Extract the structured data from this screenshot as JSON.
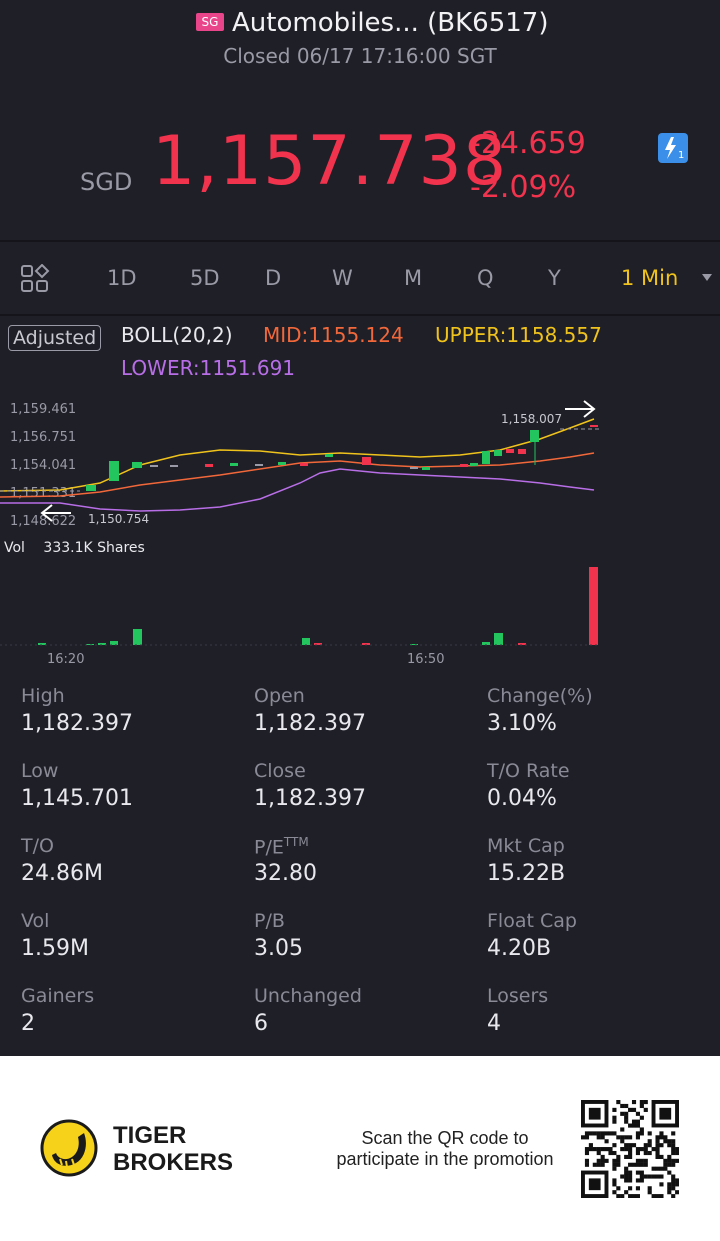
{
  "header": {
    "market_badge": "SG",
    "title": "Automobiles... (BK6517)",
    "status": "Closed 06/17 17:16:00 SGT",
    "currency": "SGD",
    "price": "1,157.738",
    "change": "-24.659",
    "change_pct": "-2.09%",
    "flash_icon": "lightning-icon",
    "colors": {
      "down": "#f2334e",
      "up": "#22c55e",
      "accent": "#f0c31c"
    }
  },
  "tabs": {
    "items": [
      "1D",
      "5D",
      "D",
      "W",
      "M",
      "Q",
      "Y",
      "1 Min"
    ],
    "active": "1 Min"
  },
  "indicator": {
    "adjusted": "Adjusted",
    "boll": "BOLL(20,2)",
    "mid": "MID:1155.124",
    "upper": "UPPER:1158.557",
    "lower": "LOWER:1151.691"
  },
  "chart_data": {
    "type": "candlestick",
    "y_ticks": [
      "1,159.461",
      "1,156.751",
      "1,154.041",
      "1,151.331",
      "1,148.622"
    ],
    "ylim": [
      1148.622,
      1159.461
    ],
    "max_label": "1,158.007",
    "min_label": "1,150.754",
    "x_ticks": [
      "16:20",
      "16:50"
    ],
    "vol_label": "Vol",
    "vol_value": "333.1K Shares",
    "colors": {
      "up": "#22c55e",
      "down": "#f2334e",
      "mid": "#f2683a",
      "upper": "#f0c31c",
      "lower": "#b86ee6"
    }
  },
  "stats": [
    {
      "label": "High",
      "value": "1,182.397"
    },
    {
      "label": "Open",
      "value": "1,182.397"
    },
    {
      "label": "Change(%)",
      "value": "3.10%"
    },
    {
      "label": "Low",
      "value": "1,145.701"
    },
    {
      "label": "Close",
      "value": "1,182.397"
    },
    {
      "label": "T/O Rate",
      "value": "0.04%"
    },
    {
      "label": "T/O",
      "value": "24.86M"
    },
    {
      "label": "P/E",
      "sup": "TTM",
      "value": "32.80"
    },
    {
      "label": "Mkt Cap",
      "value": "15.22B"
    },
    {
      "label": "Vol",
      "value": "1.59M"
    },
    {
      "label": "P/B",
      "value": "3.05"
    },
    {
      "label": "Float Cap",
      "value": "4.20B"
    },
    {
      "label": "Gainers",
      "value": "2"
    },
    {
      "label": "Unchanged",
      "value": "6"
    },
    {
      "label": "Losers",
      "value": "4"
    }
  ],
  "footer": {
    "brand_line1": "TIGER",
    "brand_line2": "BROKERS",
    "promo_line1": "Scan the QR code to",
    "promo_line2": "participate in the promotion"
  }
}
